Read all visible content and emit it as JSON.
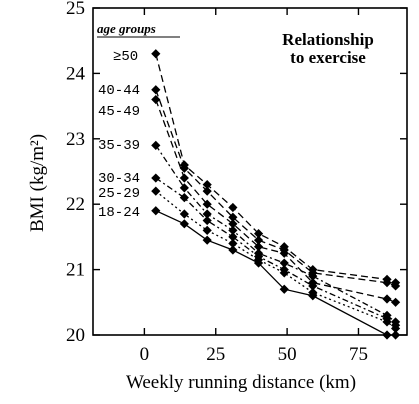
{
  "chart_data": {
    "type": "line",
    "title": "",
    "annotation": [
      "Relationship",
      "to exercise"
    ],
    "xlabel": "Weekly running distance (km)",
    "ylabel": "BMI (kg/m²)",
    "xlim": [
      -18,
      92
    ],
    "ylim": [
      20,
      25
    ],
    "x_ticks": [
      0,
      25,
      50,
      75
    ],
    "y_ticks": [
      20,
      21,
      22,
      23,
      24,
      25
    ],
    "grid": false,
    "legend": {
      "title": "age groups",
      "placement": "left, next to first points"
    },
    "x": [
      4,
      14,
      22,
      31,
      40,
      49,
      59,
      85,
      88
    ],
    "series": [
      {
        "name": "≥50",
        "dash": "dashed",
        "values": [
          24.3,
          22.6,
          22.3,
          21.95,
          21.55,
          21.35,
          21.0,
          20.85,
          20.8
        ]
      },
      {
        "name": "40-44",
        "dash": "dashed",
        "values": [
          23.75,
          22.55,
          22.2,
          21.8,
          21.45,
          21.3,
          20.95,
          20.8,
          20.75
        ]
      },
      {
        "name": "45-49",
        "dash": "dashed",
        "values": [
          23.6,
          22.4,
          22.0,
          21.7,
          21.35,
          21.25,
          20.8,
          20.55,
          20.5
        ]
      },
      {
        "name": "35-39",
        "dash": "dash-dot",
        "values": [
          22.9,
          22.25,
          21.85,
          21.6,
          21.25,
          21.1,
          20.9,
          20.3,
          20.2
        ]
      },
      {
        "name": "30-34",
        "dash": "dash-dot",
        "values": [
          22.4,
          22.1,
          21.75,
          21.5,
          21.2,
          21.0,
          20.75,
          20.25,
          20.15
        ]
      },
      {
        "name": "25-29",
        "dash": "dotted",
        "values": [
          22.2,
          21.85,
          21.6,
          21.4,
          21.15,
          20.95,
          20.65,
          20.2,
          20.1
        ]
      },
      {
        "name": "18-24",
        "dash": "solid",
        "values": [
          21.9,
          21.7,
          21.45,
          21.3,
          21.1,
          20.7,
          20.6,
          20.0,
          20.0
        ]
      }
    ]
  }
}
